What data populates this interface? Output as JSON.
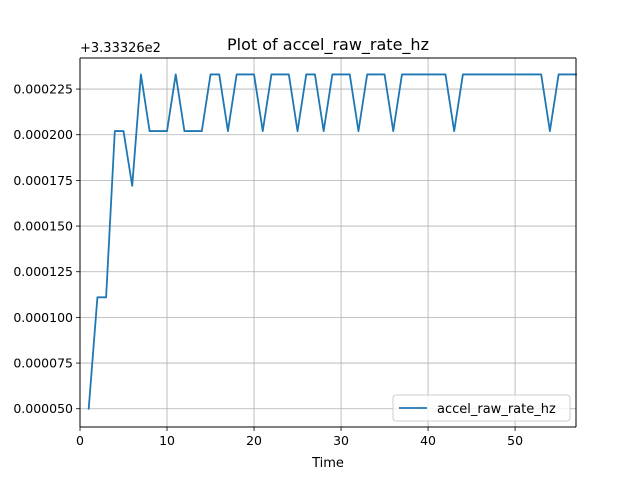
{
  "chart_data": {
    "type": "line",
    "title": "Plot of accel_raw_rate_hz",
    "xlabel": "Time",
    "ylabel": "",
    "y_offset_label": "+3.33326e2",
    "xlim": [
      0,
      57
    ],
    "ylim": [
      4e-05,
      0.000242
    ],
    "x_ticks": [
      0,
      10,
      20,
      30,
      40,
      50
    ],
    "x_tick_labels": [
      "0",
      "10",
      "20",
      "30",
      "40",
      "50"
    ],
    "y_ticks": [
      5e-05,
      7.5e-05,
      0.0001,
      0.000125,
      0.00015,
      0.000175,
      0.0002,
      0.000225
    ],
    "y_tick_labels": [
      "0.000050",
      "0.000075",
      "0.000100",
      "0.000125",
      "0.000150",
      "0.000175",
      "0.000200",
      "0.000225"
    ],
    "grid": true,
    "legend_position": "lower-right",
    "colors": {
      "series": "#1f77b4",
      "grid": "#b0b0b0",
      "axes": "#000000"
    },
    "series": [
      {
        "name": "accel_raw_rate_hz",
        "x": [
          1,
          2,
          3,
          4,
          5,
          6,
          7,
          8,
          9,
          10,
          11,
          12,
          13,
          14,
          15,
          16,
          17,
          18,
          19,
          20,
          21,
          22,
          23,
          24,
          25,
          26,
          27,
          28,
          29,
          30,
          31,
          32,
          33,
          34,
          35,
          36,
          37,
          38,
          39,
          40,
          41,
          42,
          43,
          44,
          45,
          46,
          47,
          48,
          49,
          50,
          51,
          52,
          53,
          54,
          55,
          56,
          57
        ],
        "values": [
          5e-05,
          0.000111,
          0.000111,
          0.000202,
          0.000202,
          0.000172,
          0.000233,
          0.000202,
          0.000202,
          0.000202,
          0.000233,
          0.000202,
          0.000202,
          0.000202,
          0.000233,
          0.000233,
          0.000202,
          0.000233,
          0.000233,
          0.000233,
          0.000202,
          0.000233,
          0.000233,
          0.000233,
          0.000202,
          0.000233,
          0.000233,
          0.000202,
          0.000233,
          0.000233,
          0.000233,
          0.000202,
          0.000233,
          0.000233,
          0.000233,
          0.000202,
          0.000233,
          0.000233,
          0.000233,
          0.000233,
          0.000233,
          0.000233,
          0.000202,
          0.000233,
          0.000233,
          0.000233,
          0.000233,
          0.000233,
          0.000233,
          0.000233,
          0.000233,
          0.000233,
          0.000233,
          0.000202,
          0.000233,
          0.000233,
          0.000233
        ]
      }
    ]
  }
}
